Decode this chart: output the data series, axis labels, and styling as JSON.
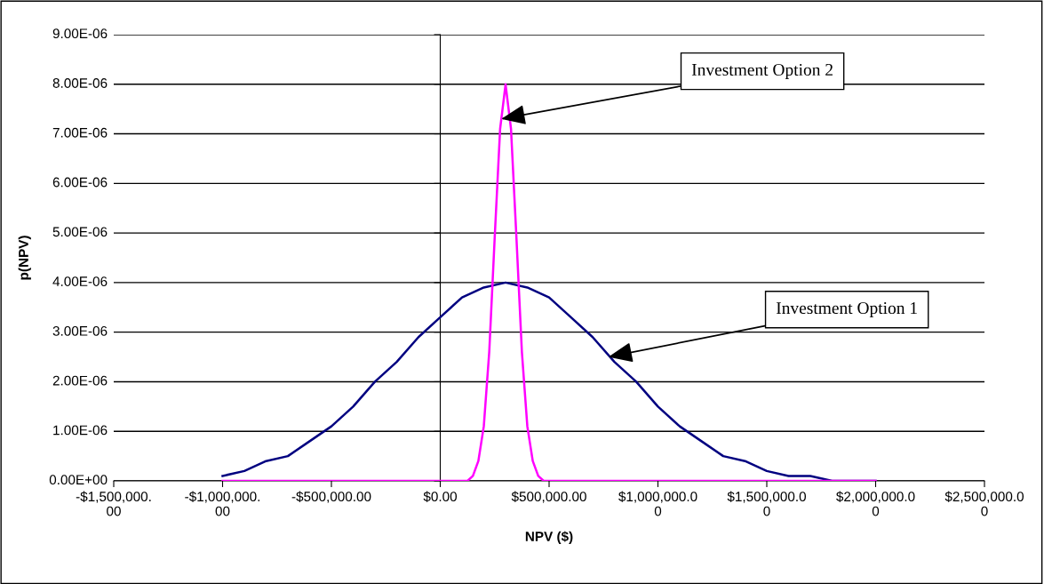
{
  "chart_data": {
    "type": "line",
    "xlabel": "NPV ($)",
    "ylabel": "p(NPV)",
    "xlim": [
      -1500000,
      2500000
    ],
    "ylim": [
      0,
      9e-06
    ],
    "xticks": [
      {
        "value": -1500000,
        "label": "-$1,500,000.\n00"
      },
      {
        "value": -1000000,
        "label": "-$1,000,000.\n00"
      },
      {
        "value": -500000,
        "label": "-$500,000.00"
      },
      {
        "value": 0,
        "label": "$0.00"
      },
      {
        "value": 500000,
        "label": "$500,000.00"
      },
      {
        "value": 1000000,
        "label": "$1,000,000.0\n0"
      },
      {
        "value": 1500000,
        "label": "$1,500,000.0\n0"
      },
      {
        "value": 2000000,
        "label": "$2,000,000.0\n0"
      },
      {
        "value": 2500000,
        "label": "$2,500,000.0\n0"
      }
    ],
    "yticks": [
      {
        "value": 0,
        "label": "0.00E+00"
      },
      {
        "value": 1e-06,
        "label": "1.00E-06"
      },
      {
        "value": 2e-06,
        "label": "2.00E-06"
      },
      {
        "value": 3e-06,
        "label": "3.00E-06"
      },
      {
        "value": 4e-06,
        "label": "4.00E-06"
      },
      {
        "value": 5e-06,
        "label": "5.00E-06"
      },
      {
        "value": 6e-06,
        "label": "6.00E-06"
      },
      {
        "value": 7e-06,
        "label": "7.00E-06"
      },
      {
        "value": 8e-06,
        "label": "8.00E-06"
      },
      {
        "value": 9e-06,
        "label": "9.00E-06"
      }
    ],
    "grid": "y",
    "legend": false,
    "marker": "none",
    "line_style": "solid",
    "series": [
      {
        "color": "#000080",
        "x": [
          -1000000,
          -900000,
          -800000,
          -700000,
          -600000,
          -500000,
          -400000,
          -300000,
          -200000,
          -100000,
          0,
          100000,
          200000,
          300000,
          400000,
          500000,
          600000,
          700000,
          800000,
          900000,
          1000000,
          1100000,
          1200000,
          1300000,
          1400000,
          1500000,
          1600000,
          1700000,
          1800000,
          1900000,
          2000000
        ],
        "values": [
          1e-07,
          2e-07,
          4e-07,
          5e-07,
          8e-07,
          1.1e-06,
          1.5e-06,
          2e-06,
          2.4e-06,
          2.9e-06,
          3.3e-06,
          3.7e-06,
          3.9e-06,
          4e-06,
          3.9e-06,
          3.7e-06,
          3.3e-06,
          2.9e-06,
          2.4e-06,
          2e-06,
          1.5e-06,
          1.1e-06,
          8e-07,
          5e-07,
          4e-07,
          2e-07,
          1e-07,
          1e-07,
          0,
          0,
          0
        ]
      },
      {
        "color": "#ff00ff",
        "x": [
          -1000000,
          100000,
          125000,
          150000,
          175000,
          200000,
          225000,
          250000,
          275000,
          300000,
          325000,
          350000,
          375000,
          400000,
          425000,
          450000,
          475000,
          500000,
          2000000
        ],
        "values": [
          0,
          0,
          0,
          1e-07,
          4e-07,
          1.1e-06,
          2.6e-06,
          4.9e-06,
          7.1e-06,
          8e-06,
          7.1e-06,
          4.9e-06,
          2.6e-06,
          1.1e-06,
          4e-07,
          1e-07,
          0,
          0,
          0
        ]
      }
    ],
    "annotations": [
      {
        "text": "Investment Option 2",
        "x": 280000,
        "y": 7.3e-06
      },
      {
        "text": "Investment Option 1",
        "x": 772000,
        "y": 2.5e-06
      }
    ]
  }
}
